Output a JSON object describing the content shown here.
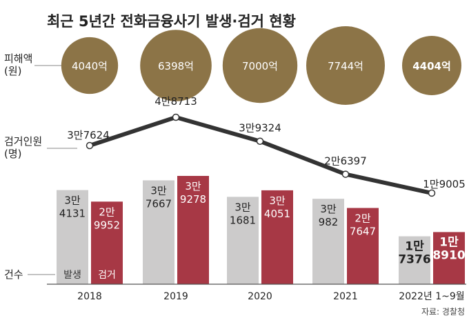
{
  "chart_data": {
    "type": "bar",
    "title": "최근 5년간 전화금융사기 발생·검거 현황",
    "categories": [
      "2018",
      "2019",
      "2020",
      "2021",
      "2022년 1~9월"
    ],
    "damage": {
      "label": "피해액\n(원)",
      "values": [
        4040,
        6398,
        7000,
        7744,
        4404
      ],
      "value_labels": [
        "4040억",
        "6398억",
        "7000억",
        "7744억",
        "4404억"
      ],
      "color": "#8c7447"
    },
    "arrests_people": {
      "label": "검거인원\n(명)",
      "values": [
        37624,
        48713,
        39324,
        26397,
        19005
      ],
      "value_labels": [
        "3만7624",
        "4만8713",
        "3만9324",
        "2만6397",
        "1만9005"
      ],
      "color": "#333333"
    },
    "series": [
      {
        "name": "발생",
        "values": [
          34131,
          37667,
          31681,
          30982,
          17376
        ],
        "value_labels": [
          "3만\n4131",
          "3만\n7667",
          "3만\n1681",
          "3만\n982",
          "1만\n7376"
        ],
        "color": "#cccbcb"
      },
      {
        "name": "검거",
        "values": [
          29952,
          39278,
          34051,
          27647,
          18910
        ],
        "value_labels": [
          "2만\n9952",
          "3만\n9278",
          "3만\n4051",
          "2만\n7647",
          "1만\n8910"
        ],
        "color": "#a73845"
      }
    ],
    "count_label": "건수",
    "source": "자료: 경찰청"
  }
}
